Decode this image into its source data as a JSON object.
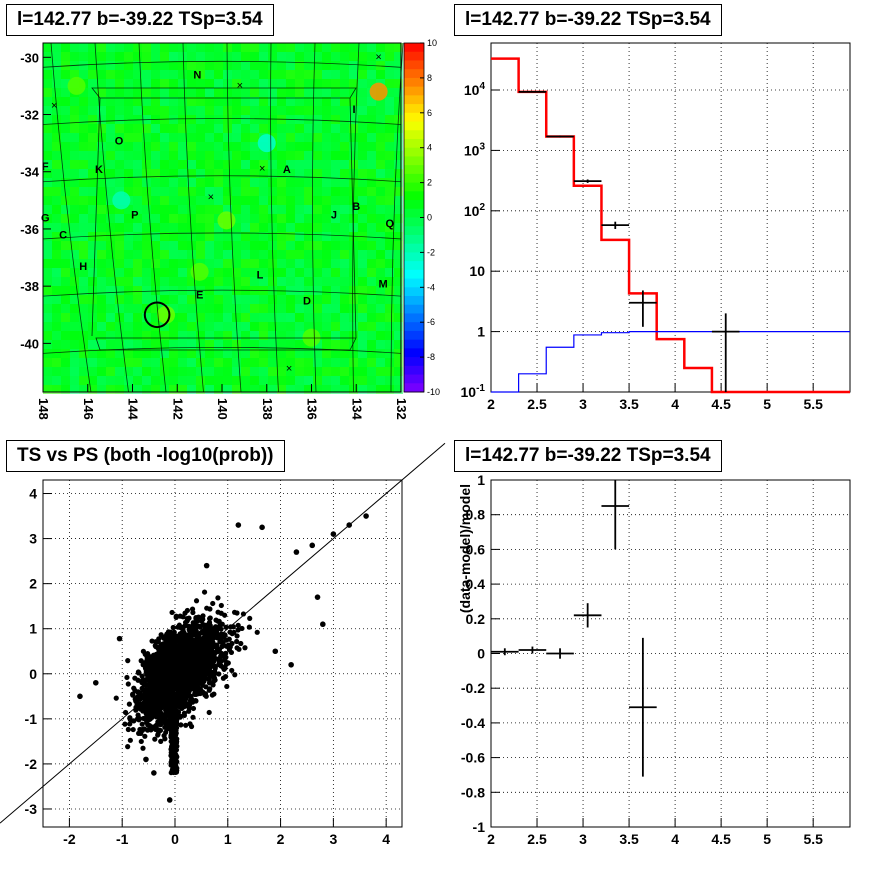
{
  "chart_data": [
    {
      "type": "heatmap",
      "title": "l=142.77 b=-39.22 TSp=3.54",
      "xlabel": "",
      "ylabel": "",
      "x_ticks": [
        "148",
        "146",
        "144",
        "142",
        "140",
        "138",
        "136",
        "134",
        "132"
      ],
      "y_ticks": [
        "-30",
        "-32",
        "-34",
        "-36",
        "-38",
        "-40"
      ],
      "xlim": [
        148,
        132
      ],
      "ylim": [
        -41.7,
        -29.5
      ],
      "colorbar_ticks": [
        "10",
        "8",
        "6",
        "4",
        "2",
        "0",
        "-2",
        "-4",
        "-6",
        "-8",
        "-10"
      ],
      "colorbar_range": [
        -10,
        10
      ],
      "background_value": 0.5,
      "hotspots": [
        {
          "l": 133.0,
          "b": -31.2,
          "value": 7.5
        },
        {
          "l": 142.5,
          "b": -39.0,
          "value": 3.0
        },
        {
          "l": 139.8,
          "b": -35.7,
          "value": 3.0
        },
        {
          "l": 146.5,
          "b": -31.0,
          "value": 2.5
        },
        {
          "l": 141.0,
          "b": -37.5,
          "value": 2.5
        },
        {
          "l": 136.0,
          "b": -39.8,
          "value": 2.5
        },
        {
          "l": 144.5,
          "b": -35.0,
          "value": -2.0
        },
        {
          "l": 138.0,
          "b": -33.0,
          "value": -2.5
        }
      ],
      "source_circle": {
        "l": 142.9,
        "b": -39.0,
        "radius_deg": 0.55
      },
      "cross_markers": [
        {
          "l": 133.0,
          "b": -30.0
        },
        {
          "l": 139.2,
          "b": -31.0
        },
        {
          "l": 147.5,
          "b": -31.7
        },
        {
          "l": 140.5,
          "b": -34.9
        },
        {
          "l": 138.2,
          "b": -33.9
        },
        {
          "l": 137.0,
          "b": -40.9
        }
      ],
      "region_labels": [
        {
          "text": "N",
          "l": 141.1,
          "b": -30.6
        },
        {
          "text": "I",
          "l": 134.1,
          "b": -31.8
        },
        {
          "text": "O",
          "l": 144.6,
          "b": -32.9
        },
        {
          "text": "F",
          "l": 147.9,
          "b": -33.8
        },
        {
          "text": "K",
          "l": 145.5,
          "b": -33.9
        },
        {
          "text": "A",
          "l": 137.1,
          "b": -33.9
        },
        {
          "text": "B",
          "l": 134.0,
          "b": -35.2
        },
        {
          "text": "J",
          "l": 135.0,
          "b": -35.5
        },
        {
          "text": "G",
          "l": 147.9,
          "b": -35.6
        },
        {
          "text": "P",
          "l": 143.9,
          "b": -35.5
        },
        {
          "text": "Q",
          "l": 132.5,
          "b": -35.8
        },
        {
          "text": "C",
          "l": 147.1,
          "b": -36.2
        },
        {
          "text": "H",
          "l": 146.2,
          "b": -37.3
        },
        {
          "text": "L",
          "l": 138.3,
          "b": -37.6
        },
        {
          "text": "M",
          "l": 132.8,
          "b": -37.9
        },
        {
          "text": "E",
          "l": 141.0,
          "b": -38.3
        },
        {
          "text": "D",
          "l": 136.2,
          "b": -38.5
        }
      ]
    },
    {
      "type": "line",
      "title": "l=142.77 b=-39.22 TSp=3.54",
      "xlabel": "",
      "ylabel": "",
      "log_y": true,
      "xlim": [
        2,
        5.9
      ],
      "ylim": [
        0.1,
        60000
      ],
      "x_ticks": [
        "2",
        "2.5",
        "3",
        "3.5",
        "4",
        "4.5",
        "5",
        "5.5"
      ],
      "y_ticks": [
        "10^-1",
        "1",
        "10",
        "10^2",
        "10^3",
        "10^4"
      ],
      "grid": true,
      "bin_edges": [
        2.0,
        2.3,
        2.6,
        2.9,
        3.2,
        3.5,
        3.8,
        4.1,
        4.4,
        4.7,
        5.0,
        5.3,
        5.6,
        5.9
      ],
      "series": [
        {
          "color": "#ff0000",
          "values": [
            33000,
            9300,
            1700,
            260,
            33,
            4.3,
            0.75,
            0.25,
            0.1,
            0.1,
            0.1,
            0.1,
            0.1
          ]
        },
        {
          "color": "#0000ff",
          "values": [
            0.1,
            0.2,
            0.55,
            0.88,
            0.96,
            1.0,
            1.0,
            1.0,
            1.0,
            1.0,
            1.0,
            1.0,
            1.0
          ]
        }
      ],
      "data_points": [
        {
          "x": 2.45,
          "y": 9300,
          "xerr": 0.15,
          "ylo": 9200,
          "yhi": 9400
        },
        {
          "x": 2.75,
          "y": 1700,
          "xerr": 0.15,
          "ylo": 1650,
          "yhi": 1750
        },
        {
          "x": 3.05,
          "y": 310,
          "xerr": 0.15,
          "ylo": 290,
          "yhi": 330
        },
        {
          "x": 3.35,
          "y": 58,
          "xerr": 0.15,
          "ylo": 50,
          "yhi": 66
        },
        {
          "x": 3.65,
          "y": 3,
          "xerr": 0.15,
          "ylo": 1.2,
          "yhi": 4.8
        },
        {
          "x": 4.55,
          "y": 1,
          "xerr": 0.15,
          "ylo": 0.1,
          "yhi": 2.0
        }
      ]
    },
    {
      "type": "scatter",
      "title": "TS vs PS (both -log10(prob))",
      "xlabel": "",
      "ylabel": "",
      "xlim": [
        -2.5,
        4.3
      ],
      "ylim": [
        -3.4,
        4.3
      ],
      "x_ticks": [
        "-2",
        "-1",
        "0",
        "1",
        "2",
        "3",
        "4"
      ],
      "y_ticks": [
        "-3",
        "-2",
        "-1",
        "0",
        "1",
        "2",
        "3",
        "4"
      ],
      "grid": true,
      "diagonal": true,
      "notable_points": [
        [
          3.62,
          3.5
        ],
        [
          3.3,
          3.3
        ],
        [
          3.0,
          3.1
        ],
        [
          2.6,
          2.85
        ],
        [
          2.3,
          2.7
        ],
        [
          1.2,
          3.3
        ],
        [
          1.65,
          3.25
        ],
        [
          2.7,
          1.7
        ],
        [
          2.8,
          1.1
        ],
        [
          -1.05,
          0.78
        ],
        [
          -1.5,
          -0.2
        ],
        [
          -1.8,
          -0.5
        ],
        [
          -0.4,
          -2.2
        ],
        [
          -0.1,
          -2.8
        ],
        [
          -0.55,
          -1.9
        ],
        [
          0.6,
          2.4
        ],
        [
          1.9,
          0.5
        ],
        [
          2.2,
          0.2
        ]
      ]
    },
    {
      "type": "line",
      "title": "l=142.77 b=-39.22 TSp=3.54",
      "xlabel": "",
      "ylabel": "(data-model)/model",
      "xlim": [
        2,
        5.9
      ],
      "ylim": [
        -1,
        1
      ],
      "x_ticks": [
        "2",
        "2.5",
        "3",
        "3.5",
        "4",
        "4.5",
        "5",
        "5.5"
      ],
      "y_ticks": [
        "1",
        "0.8",
        "0.6",
        "0.4",
        "0.2",
        "0",
        "-0.2",
        "-0.4",
        "-0.6",
        "-0.8",
        "-1"
      ],
      "grid": true,
      "data_points": [
        {
          "x": 2.15,
          "y": 0.01,
          "xerr": 0.15,
          "ylo": -0.01,
          "yhi": 0.03
        },
        {
          "x": 2.45,
          "y": 0.02,
          "xerr": 0.15,
          "ylo": 0.0,
          "yhi": 0.04
        },
        {
          "x": 2.75,
          "y": 0.0,
          "xerr": 0.15,
          "ylo": -0.03,
          "yhi": 0.03
        },
        {
          "x": 3.05,
          "y": 0.22,
          "xerr": 0.15,
          "ylo": 0.15,
          "yhi": 0.29
        },
        {
          "x": 3.35,
          "y": 0.85,
          "xerr": 0.15,
          "ylo": 0.6,
          "yhi": 1.0
        },
        {
          "x": 3.65,
          "y": -0.31,
          "xerr": 0.15,
          "ylo": -0.71,
          "yhi": 0.09
        }
      ]
    }
  ]
}
